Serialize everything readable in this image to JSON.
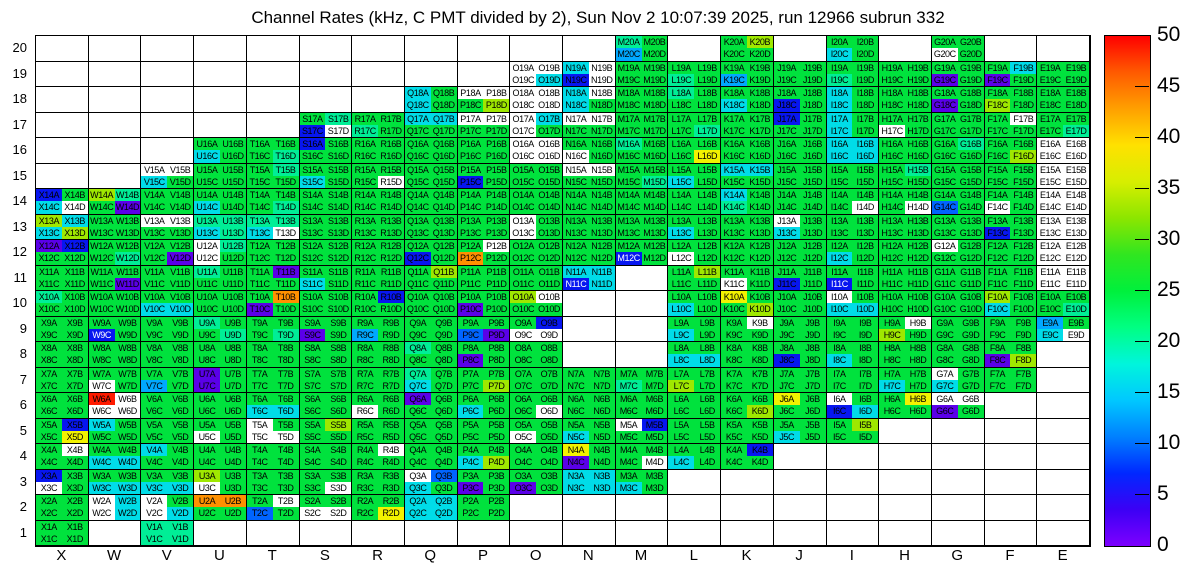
{
  "title": "Channel Rates (kHz, C PMT divided by 2), Sun Nov  2 10:07:39 2025, run 12966 subrun 332",
  "axes": {
    "columns": [
      "X",
      "W",
      "V",
      "U",
      "T",
      "S",
      "R",
      "Q",
      "P",
      "O",
      "N",
      "M",
      "L",
      "K",
      "J",
      "I",
      "H",
      "G",
      "F",
      "E"
    ],
    "rows_top_to_bottom": [
      "20",
      "19",
      "18",
      "17",
      "16",
      "15",
      "14",
      "13",
      "12",
      "11",
      "10",
      "9",
      "8",
      "7",
      "6",
      "5",
      "4",
      "3",
      "2",
      "1"
    ]
  },
  "legend": {
    "ticks_bottom_to_top": [
      "0",
      "5",
      "10",
      "15",
      "20",
      "25",
      "30",
      "35",
      "40",
      "45",
      "50"
    ],
    "gradient_bottom_to_top": [
      "#7D00FF",
      "#3C00F5",
      "#0028FF",
      "#0080FF",
      "#00C8FF",
      "#00F5DC",
      "#00FF82",
      "#00F03C",
      "#30E620",
      "#8CE600",
      "#D7EE00",
      "#FFE100",
      "#FFA000",
      "#FF5A00",
      "#FF0000"
    ]
  },
  "chart_data": {
    "type": "heatmap",
    "title": "Channel Rates (kHz, C PMT divided by 2), Sun Nov  2 10:07:39 2025, run 12966 subrun 332",
    "unit": "kHz",
    "x_categories": [
      "X",
      "W",
      "V",
      "U",
      "T",
      "S",
      "R",
      "Q",
      "P",
      "O",
      "N",
      "M",
      "L",
      "K",
      "J",
      "I",
      "H",
      "G",
      "F",
      "E"
    ],
    "y_categories": [
      1,
      2,
      3,
      4,
      5,
      6,
      7,
      8,
      9,
      10,
      11,
      12,
      13,
      14,
      15,
      16,
      17,
      18,
      19,
      20
    ],
    "color_scale": {
      "min": 0,
      "max": 50,
      "tick_step": 5
    },
    "layout": "each module cell holds 4 channels: A,B on top row and C,D on bottom row",
    "palette_codes": {
      "G": {
        "hex": "#00E23D",
        "approx_kHz": 27
      },
      "T": {
        "hex": "#00EE96",
        "approx_kHz": 21
      },
      "C": {
        "hex": "#00DCE8",
        "approx_kHz": 15
      },
      "c": {
        "hex": "#00A8FF",
        "approx_kHz": 12
      },
      "B": {
        "hex": "#0064FF",
        "approx_kHz": 9
      },
      "b": {
        "hex": "#0716F0",
        "approx_kHz": 6
      },
      "P": {
        "hex": "#5A00E8",
        "approx_kHz": 2
      },
      "L": {
        "hex": "#9FE800",
        "approx_kHz": 33
      },
      "Y": {
        "hex": "#F2F200",
        "approx_kHz": 38
      },
      "O": {
        "hex": "#FF9000",
        "approx_kHz": 43
      },
      "R": {
        "hex": "#FF1A00",
        "approx_kHz": 49
      },
      "W": {
        "hex": "#FFFFFF",
        "approx_kHz": null
      }
    },
    "white_text_channels": [
      "W9C",
      "N11C",
      "M12C",
      "I11C"
    ],
    "cells": {
      "X": {
        "14": "bGCW",
        "13": "LCCL",
        "12": "PbGG",
        "11": "GGGG",
        "10": "TGGG",
        "9": "GGGG",
        "8": "GGGG",
        "7": "GGGG",
        "6": "GGGG",
        "5": "GbGY",
        "4": "GWGG",
        "3": "bGWG",
        "2": "GGGG",
        "1": "GGGG"
      },
      "W": {
        "14": "LTGP",
        "13": "GGGG",
        "12": "GGGT",
        "11": "GGGP",
        "10": "GGGG",
        "9": "GGbG",
        "8": "GGGG",
        "7": "GGWG",
        "6": "RWWW",
        "5": "CGGG",
        "4": "GGCC",
        "3": "GGCC",
        "2": "WCWC"
      },
      "V": {
        "15": "WWCG",
        "14": "GGGG",
        "13": "WWGG",
        "12": "GGGP",
        "11": "GGGG",
        "10": "GGCC",
        "9": "GGGG",
        "8": "GGGG",
        "7": "GGcG",
        "6": "GGGG",
        "5": "GGGG",
        "4": "CGGG",
        "3": "GGCC",
        "2": "WGWC",
        "1": "TTTT"
      },
      "U": {
        "16": "GGCG",
        "15": "GGGG",
        "14": "GGCG",
        "13": "TTCT",
        "12": "WTWG",
        "11": "TGGG",
        "10": "GGGG",
        "9": "TGGT",
        "8": "GGGG",
        "7": "PGPG",
        "6": "GGGG",
        "5": "GGWG",
        "4": "GGGG",
        "3": "LGWG",
        "2": "OOGG"
      },
      "T": {
        "16": "GGGT",
        "15": "GTGG",
        "14": "GGGT",
        "13": "TTCW",
        "12": "GGGG",
        "11": "GPGG",
        "10": "GOPG",
        "9": "GGGT",
        "8": "GGGG",
        "7": "GGGG",
        "6": "GGCC",
        "5": "WGWW",
        "4": "GGGG",
        "3": "GGGG",
        "2": "GWBG"
      },
      "S": {
        "17": "GTbW",
        "16": "bGGG",
        "15": "GGCG",
        "14": "GGGG",
        "13": "GGGG",
        "12": "GGGG",
        "11": "GGCG",
        "10": "GGGG",
        "9": "GGPG",
        "8": "GGGG",
        "7": "GGGG",
        "6": "GGGG",
        "5": "GLGG",
        "4": "GGGG",
        "3": "GGGW",
        "2": "GGWW"
      },
      "R": {
        "17": "GGTG",
        "16": "GGGG",
        "15": "GGGW",
        "14": "GGGG",
        "13": "GGGG",
        "12": "GGGG",
        "11": "GGGG",
        "10": "GbGG",
        "9": "GGcG",
        "8": "GGGG",
        "7": "GGGG",
        "6": "GGWG",
        "5": "GGGG",
        "4": "GWGG",
        "3": "GGGG",
        "2": "GGGY"
      },
      "Q": {
        "18": "CGCG",
        "17": "CCGG",
        "16": "GGGG",
        "15": "GGGG",
        "14": "GGGG",
        "13": "GGGG",
        "12": "GGbG",
        "11": "GLGG",
        "10": "GGGG",
        "9": "GGGG",
        "8": "TGGG",
        "7": "TGCG",
        "6": "PGGG",
        "5": "GGGG",
        "4": "GGGG",
        "3": "WBCG",
        "2": "CCCC"
      },
      "P": {
        "18": "WWGL",
        "17": "WWGG",
        "16": "GGGG",
        "15": "GGbG",
        "14": "GGGG",
        "13": "GGGG",
        "12": "GWOG",
        "11": "GGGG",
        "10": "GGPG",
        "9": "GGBP",
        "8": "GGPG",
        "7": "GGGL",
        "6": "GGCG",
        "5": "GGGG",
        "4": "GGCL",
        "3": "GGPG",
        "2": "GGGG"
      },
      "O": {
        "19": "WWWC",
        "18": "WWWW",
        "17": "WCWG",
        "16": "WWWW",
        "15": "GGGG",
        "14": "GGGG",
        "13": "WGWG",
        "12": "GGGG",
        "11": "GGGG",
        "10": "LWGG",
        "9": "GbWW",
        "8": "GGGG",
        "7": "GGGG",
        "6": "GGGW",
        "5": "GGWG",
        "4": "GGGG",
        "3": "GGPG"
      },
      "N": {
        "19": "CWbW",
        "18": "CWCG",
        "17": "WWGG",
        "16": "GGWG",
        "15": "WWGG",
        "14": "GGGG",
        "13": "GGGG",
        "12": "GGGG",
        "11": "CCbC",
        "7": "GGGG",
        "6": "GGGG",
        "5": "GGCG",
        "4": "YGPG",
        "3": "CCCC"
      },
      "M": {
        "20": "TGcG",
        "19": "GGGG",
        "18": "GGGG",
        "17": "GGGG",
        "16": "TGGG",
        "15": "GGGT",
        "14": "GGGG",
        "13": "GGGG",
        "12": "GGbG",
        "7": "GGTG",
        "6": "GGGG",
        "5": "WbGG",
        "4": "GGGW",
        "3": "GGCG"
      },
      "L": {
        "19": "GGTG",
        "18": "TGGG",
        "17": "GGGT",
        "16": "GGGY",
        "15": "GGCG",
        "14": "GGGG",
        "13": "GGCG",
        "12": "GGWG",
        "11": "GLGG",
        "10": "GGCG",
        "9": "GGCG",
        "8": "GGCC",
        "7": "GGLG",
        "6": "GGGG",
        "5": "GGGG",
        "4": "GGCG"
      },
      "K": {
        "20": "GLGG",
        "19": "GGcG",
        "18": "GGCG",
        "17": "GGGG",
        "16": "GGGG",
        "15": "CCGG",
        "14": "CGTG",
        "13": "GGGG",
        "12": "GGGG",
        "11": "GGWG",
        "10": "YGGL",
        "9": "GWGG",
        "8": "GGGG",
        "7": "GGGG",
        "6": "GGGL",
        "5": "GGGG",
        "4": "GbGG"
      },
      "J": {
        "19": "GGGG",
        "18": "GGbG",
        "17": "bGGG",
        "16": "GGGG",
        "15": "GGGG",
        "14": "GGGG",
        "13": "WGCG",
        "12": "GGGG",
        "11": "GGbG",
        "10": "GGGG",
        "9": "GGGG",
        "8": "GGbG",
        "7": "GGGG",
        "6": "YGGG",
        "5": "GGCG"
      },
      "I": {
        "20": "GGCG",
        "19": "GGTG",
        "18": "CGCG",
        "17": "CGCG",
        "16": "CCCC",
        "15": "GGGG",
        "14": "GGGW",
        "13": "GGGG",
        "12": "GGCG",
        "11": "GGbG",
        "10": "WGCC",
        "9": "GGGG",
        "8": "GGCG",
        "7": "GGGG",
        "6": "WGbC",
        "5": "GLGG"
      },
      "H": {
        "19": "GGGG",
        "18": "GGGG",
        "17": "GGWG",
        "16": "GGGG",
        "15": "GTGG",
        "14": "GGGW",
        "13": "GGGG",
        "12": "GGGG",
        "11": "GGGG",
        "10": "GGGG",
        "9": "GWLG",
        "8": "GGGG",
        "7": "GGCG",
        "6": "GYGG"
      },
      "G": {
        "20": "GGWG",
        "19": "GGPG",
        "18": "GGPG",
        "17": "GGGG",
        "16": "GTGG",
        "15": "GGGG",
        "14": "GGBG",
        "13": "GGGG",
        "12": "WGGG",
        "11": "GGGG",
        "10": "GGGG",
        "9": "GGGG",
        "8": "GGGG",
        "7": "WGCG",
        "6": "WWPG"
      },
      "F": {
        "19": "GCPG",
        "18": "GGLG",
        "17": "GWGG",
        "16": "GGGL",
        "15": "GGGG",
        "14": "GGWG",
        "13": "GGbG",
        "12": "GGGG",
        "11": "GGGG",
        "10": "LGCG",
        "9": "GGGG",
        "8": "GGPL",
        "7": "GGGG"
      },
      "E": {
        "19": "GGGG",
        "18": "GGGG",
        "17": "GGGT",
        "16": "WWWW",
        "15": "WWWW",
        "14": "WWWW",
        "13": "WWWW",
        "12": "WWWW",
        "11": "WWWW",
        "10": "GGGT",
        "9": "cGCW"
      }
    }
  }
}
